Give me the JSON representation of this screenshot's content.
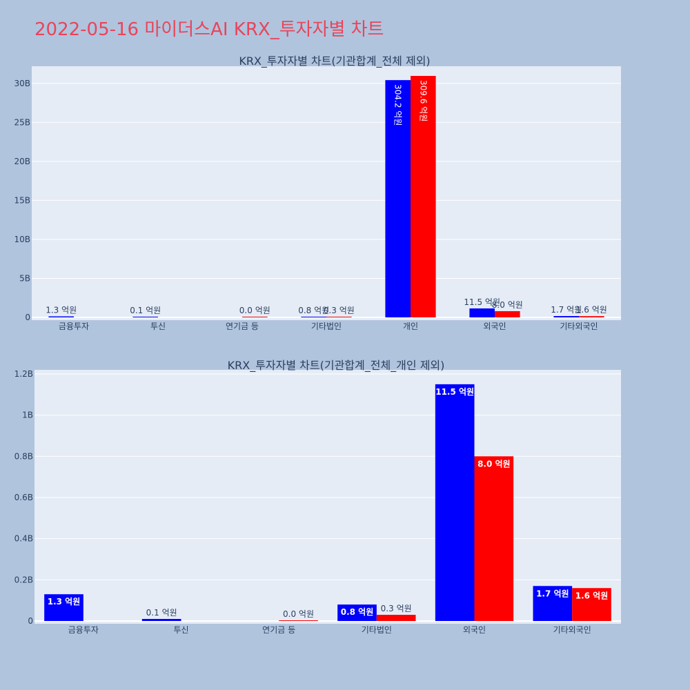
{
  "page_title": "2022-05-16 마이더스AI KRX_투자자별 차트",
  "colors": {
    "buy": "#0000ff",
    "sell": "#ff0000",
    "background": "#b0c4de",
    "plot_bg": "#e5ecf6",
    "title": "#e8455a"
  },
  "chart_data": [
    {
      "type": "bar",
      "title": "KRX_투자자별 차트(기관합계_전체 제외)",
      "categories": [
        "금융투자",
        "투신",
        "연기금 등",
        "기타법인",
        "개인",
        "외국인",
        "기타외국인"
      ],
      "series": [
        {
          "color": "#0000ff",
          "values": [
            130000000,
            10000000,
            0,
            80000000,
            30420000000,
            1150000000,
            170000000
          ],
          "labels": [
            "1.3 억원",
            "0.1 억원",
            "",
            "0.8 억원",
            "304.2 억원",
            "11.5 억원",
            "1.7 억원"
          ]
        },
        {
          "color": "#ff0000",
          "values": [
            0,
            0,
            3000000,
            30000000,
            30960000000,
            800000000,
            160000000
          ],
          "labels": [
            "",
            "",
            "0.0 억원",
            "0.3 억원",
            "309.6 억원",
            "8.0 억원",
            "1.6 억원"
          ]
        }
      ],
      "yticks": [
        0,
        5000000000,
        10000000000,
        15000000000,
        20000000000,
        25000000000,
        30000000000
      ],
      "ytick_labels": [
        "0",
        "5B",
        "10B",
        "15B",
        "20B",
        "25B",
        "30B"
      ],
      "ylim": [
        0,
        32200000000
      ],
      "grid": true
    },
    {
      "type": "bar",
      "title": "KRX_투자자별 차트(기관합계_전체_개인 제외)",
      "categories": [
        "금융투자",
        "투신",
        "연기금 등",
        "기타법인",
        "외국인",
        "기타외국인"
      ],
      "series": [
        {
          "color": "#0000ff",
          "values": [
            130000000,
            10000000,
            0,
            80000000,
            1150000000,
            170000000
          ],
          "labels": [
            "1.3 억원",
            "0.1 억원",
            "",
            "0.8 억원",
            "11.5 억원",
            "1.7 억원"
          ]
        },
        {
          "color": "#ff0000",
          "values": [
            0,
            0,
            3000000,
            30000000,
            800000000,
            160000000
          ],
          "labels": [
            "",
            "",
            "0.0 억원",
            "0.3 억원",
            "8.0 억원",
            "1.6 억원"
          ]
        }
      ],
      "yticks": [
        0,
        200000000,
        400000000,
        600000000,
        800000000,
        1000000000,
        1200000000
      ],
      "ytick_labels": [
        "0",
        "0.2B",
        "0.4B",
        "0.6B",
        "0.8B",
        "1B",
        "1.2B"
      ],
      "ylim": [
        0,
        1220000000
      ],
      "grid": true
    }
  ]
}
